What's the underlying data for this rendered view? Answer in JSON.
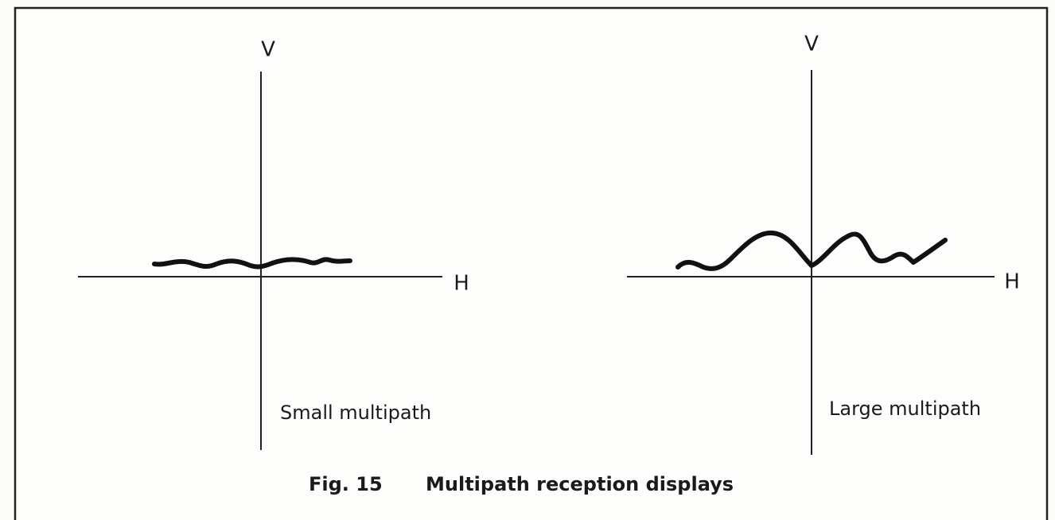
{
  "panels": [
    {
      "v_label": "V",
      "h_label": "H",
      "caption": "Small multipath"
    },
    {
      "v_label": "V",
      "h_label": "H",
      "caption": "Large multipath"
    }
  ],
  "figure": {
    "number": "Fig. 15",
    "caption": "Multipath reception displays"
  }
}
